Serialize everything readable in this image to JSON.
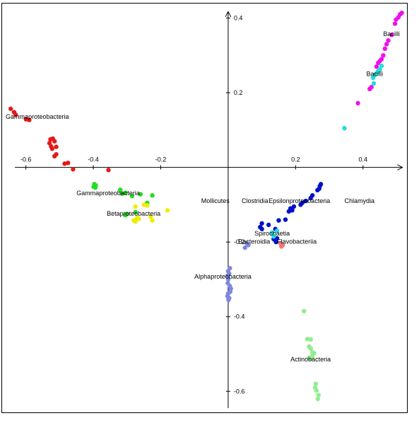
{
  "chart_data": {
    "type": "scatter",
    "title": "",
    "xlabel": "",
    "ylabel": "",
    "xlim": [
      -0.66,
      0.52
    ],
    "ylim": [
      -0.645,
      0.42
    ],
    "x_ticks": [
      {
        "value": -0.6,
        "label": "-0.6"
      },
      {
        "value": -0.4,
        "label": "-0.4"
      },
      {
        "value": -0.2,
        "label": "-0.2"
      },
      {
        "value": 0.2,
        "label": "0.2"
      },
      {
        "value": 0.4,
        "label": "0.4"
      }
    ],
    "y_ticks": [
      {
        "value": 0.4,
        "label": "0.4"
      },
      {
        "value": 0.2,
        "label": "0.2"
      },
      {
        "value": -0.2,
        "label": "-0.2"
      },
      {
        "value": -0.4,
        "label": "-0.4"
      },
      {
        "value": -0.6,
        "label": "-0.6"
      }
    ],
    "grid": false,
    "series": [
      {
        "name": "Gammaproteobacteria",
        "color": "#e41a1a",
        "points": [
          [
            -0.645,
            0.157
          ],
          [
            -0.635,
            0.148
          ],
          [
            -0.63,
            0.141
          ],
          [
            -0.6,
            0.129
          ],
          [
            -0.59,
            0.127
          ],
          [
            -0.527,
            0.075
          ],
          [
            -0.52,
            0.077
          ],
          [
            -0.515,
            0.07
          ],
          [
            -0.53,
            0.065
          ],
          [
            -0.525,
            0.056
          ],
          [
            -0.51,
            0.055
          ],
          [
            -0.522,
            0.05
          ],
          [
            -0.51,
            0.035
          ],
          [
            -0.515,
            0.03
          ],
          [
            -0.485,
            0.01
          ],
          [
            -0.475,
            0.012
          ],
          [
            -0.46,
            -0.005
          ],
          [
            -0.355,
            -0.007
          ]
        ]
      },
      {
        "name": "Gammaproteobacteria",
        "color": "#22dd22",
        "points": [
          [
            -0.397,
            -0.045
          ],
          [
            -0.393,
            -0.048
          ],
          [
            -0.399,
            -0.052
          ],
          [
            -0.394,
            -0.054
          ],
          [
            -0.32,
            -0.06
          ],
          [
            -0.315,
            -0.07
          ],
          [
            -0.305,
            -0.068
          ],
          [
            -0.285,
            -0.077
          ],
          [
            -0.26,
            -0.072
          ],
          [
            -0.225,
            -0.075
          ],
          [
            -0.24,
            -0.095
          ],
          [
            -0.305,
            -0.128
          ],
          [
            -0.3,
            -0.125
          ],
          [
            -0.275,
            -0.12
          ]
        ]
      },
      {
        "name": "Betaproteobacteria",
        "color": "#eeee00",
        "points": [
          [
            -0.275,
            -0.105
          ],
          [
            -0.25,
            -0.1
          ],
          [
            -0.24,
            -0.102
          ],
          [
            -0.18,
            -0.115
          ],
          [
            -0.27,
            -0.135
          ],
          [
            -0.28,
            -0.142
          ],
          [
            -0.265,
            -0.138
          ],
          [
            -0.275,
            -0.145
          ],
          [
            -0.23,
            -0.132
          ],
          [
            -0.225,
            -0.142
          ]
        ]
      },
      {
        "name": "Mollicutes",
        "color": "#0010cc",
        "points": [
          [
            0.275,
            -0.045
          ],
          [
            0.272,
            -0.05
          ],
          [
            0.27,
            -0.057
          ],
          [
            0.265,
            -0.061
          ],
          [
            0.25,
            -0.075
          ],
          [
            0.245,
            -0.082
          ],
          [
            0.23,
            -0.09
          ],
          [
            0.22,
            -0.095
          ],
          [
            0.215,
            -0.1
          ],
          [
            0.195,
            -0.105
          ],
          [
            0.185,
            -0.11
          ],
          [
            0.18,
            -0.118
          ],
          [
            0.19,
            -0.115
          ],
          [
            0.17,
            -0.14
          ],
          [
            0.15,
            -0.142
          ],
          [
            0.12,
            -0.154
          ],
          [
            0.1,
            -0.15
          ],
          [
            0.095,
            -0.16
          ],
          [
            0.1,
            -0.165
          ],
          [
            0.14,
            -0.165
          ],
          [
            0.145,
            -0.19
          ],
          [
            0.135,
            -0.192
          ],
          [
            0.14,
            -0.196
          ],
          [
            0.142,
            -0.2
          ]
        ]
      },
      {
        "name": "Spirochaetia",
        "color": "#22dddd",
        "points": [
          [
            0.13,
            -0.175
          ],
          [
            0.145,
            -0.17
          ],
          [
            0.135,
            -0.185
          ]
        ]
      },
      {
        "name": "Bacteroidia",
        "color": "#7f86e0",
        "points": [
          [
            0.055,
            -0.203
          ],
          [
            0.06,
            -0.208
          ],
          [
            0.05,
            -0.215
          ]
        ]
      },
      {
        "name": "Flavobacteriia",
        "color": "#f07878",
        "points": [
          [
            0.155,
            -0.203
          ],
          [
            0.158,
            -0.212
          ],
          [
            0.162,
            -0.208
          ]
        ]
      },
      {
        "name": "Alphaproteobacteria",
        "color": "#7f86e0",
        "points": [
          [
            0.005,
            -0.27
          ],
          [
            0.0,
            -0.278
          ],
          [
            0.003,
            -0.285
          ],
          [
            -0.002,
            -0.29
          ],
          [
            0.0,
            -0.3
          ],
          [
            -0.001,
            -0.31
          ],
          [
            0.005,
            -0.318
          ],
          [
            0.008,
            -0.325
          ],
          [
            0.006,
            -0.333
          ],
          [
            0.0,
            -0.338
          ],
          [
            -0.002,
            -0.345
          ],
          [
            0.003,
            -0.35
          ],
          [
            0.001,
            -0.355
          ]
        ]
      },
      {
        "name": "Actinobacteria",
        "color": "#90ee90",
        "points": [
          [
            0.225,
            -0.385
          ],
          [
            0.235,
            -0.46
          ],
          [
            0.245,
            -0.461
          ],
          [
            0.24,
            -0.48
          ],
          [
            0.245,
            -0.485
          ],
          [
            0.25,
            -0.495
          ],
          [
            0.255,
            -0.498
          ],
          [
            0.25,
            -0.505
          ],
          [
            0.24,
            -0.51
          ],
          [
            0.245,
            -0.512
          ],
          [
            0.26,
            -0.58
          ],
          [
            0.258,
            -0.59
          ],
          [
            0.262,
            -0.598
          ],
          [
            0.268,
            -0.61
          ],
          [
            0.266,
            -0.62
          ]
        ]
      },
      {
        "name": "Bacilli",
        "color": "#ee11ee",
        "points": [
          [
            0.515,
            0.414
          ],
          [
            0.51,
            0.41
          ],
          [
            0.505,
            0.402
          ],
          [
            0.498,
            0.396
          ],
          [
            0.495,
            0.385
          ],
          [
            0.485,
            0.355
          ],
          [
            0.475,
            0.34
          ],
          [
            0.47,
            0.33
          ],
          [
            0.465,
            0.318
          ],
          [
            0.46,
            0.3
          ],
          [
            0.455,
            0.29
          ],
          [
            0.45,
            0.285
          ],
          [
            0.445,
            0.28
          ],
          [
            0.44,
            0.27
          ],
          [
            0.425,
            0.215
          ],
          [
            0.42,
            0.21
          ],
          [
            0.385,
            0.172
          ]
        ]
      },
      {
        "name": "Bacilli",
        "color": "#22dddd",
        "points": [
          [
            0.455,
            0.272
          ],
          [
            0.45,
            0.262
          ],
          [
            0.445,
            0.258
          ],
          [
            0.44,
            0.252
          ],
          [
            0.435,
            0.248
          ],
          [
            0.43,
            0.24
          ],
          [
            0.432,
            0.225
          ],
          [
            0.345,
            0.105
          ]
        ]
      }
    ],
    "annotations": [
      {
        "text": "Gammaproteobacteria",
        "x": -0.66,
        "y": 0.13
      },
      {
        "text": "Gammaproteobacteria",
        "x": -0.45,
        "y": -0.075
      },
      {
        "text": "Betaproteobacteria",
        "x": -0.36,
        "y": -0.13
      },
      {
        "text": "Mollicutes",
        "x": -0.08,
        "y": -0.095
      },
      {
        "text": "Clostridia",
        "x": 0.04,
        "y": -0.095
      },
      {
        "text": "Epsilonproteobacteria",
        "x": 0.12,
        "y": -0.095
      },
      {
        "text": "Chlamydia",
        "x": 0.345,
        "y": -0.095
      },
      {
        "text": "Spirochaetia",
        "x": 0.078,
        "y": -0.183
      },
      {
        "text": "Bacteroidia",
        "x": 0.03,
        "y": -0.204
      },
      {
        "text": "Flavobacteriia",
        "x": 0.145,
        "y": -0.204
      },
      {
        "text": "Alphaproteobacteria",
        "x": -0.1,
        "y": -0.298
      },
      {
        "text": "Actinobacteria",
        "x": 0.185,
        "y": -0.52
      },
      {
        "text": "Bacilli",
        "x": 0.46,
        "y": 0.352
      },
      {
        "text": "Bacilli",
        "x": 0.41,
        "y": 0.245
      }
    ]
  }
}
